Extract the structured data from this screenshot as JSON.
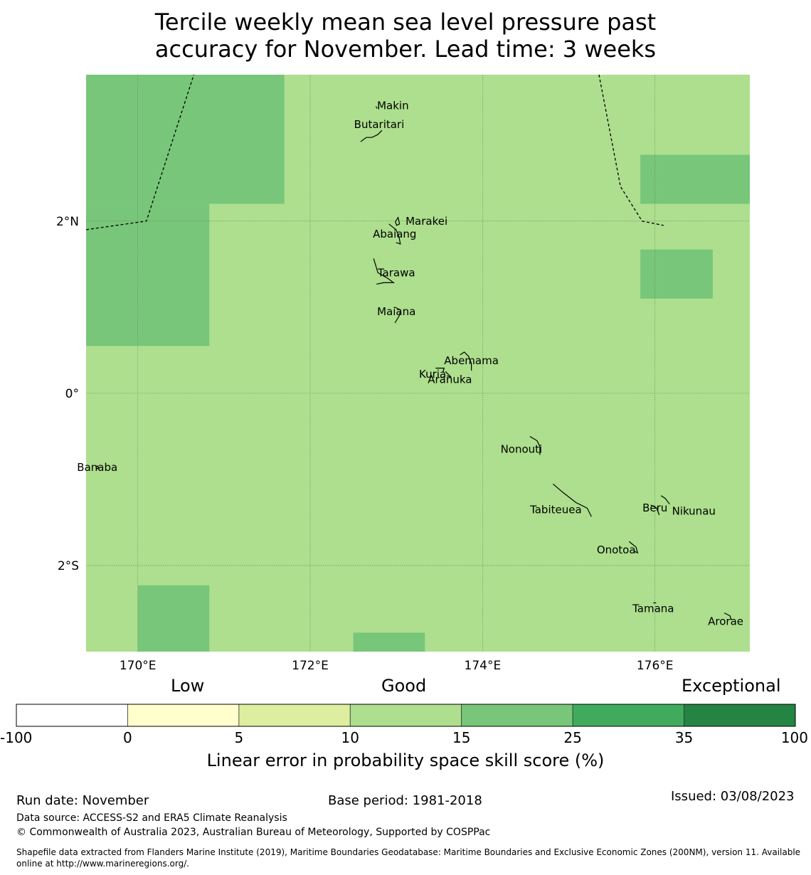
{
  "title": {
    "line1": "Tercile weekly mean sea level pressure past",
    "line2": "accuracy for November. Lead time: 3 weeks"
  },
  "map": {
    "lon_range": [
      169.4,
      177.1
    ],
    "lat_range": [
      -3.0,
      3.7
    ],
    "lat_labels": [
      {
        "value": 2,
        "label": "2°N"
      },
      {
        "value": 0,
        "label": "0°"
      },
      {
        "value": -2,
        "label": "2°S"
      }
    ],
    "lon_labels": [
      {
        "value": 170,
        "label": "170°E"
      },
      {
        "value": 172,
        "label": "172°E"
      },
      {
        "value": 174,
        "label": "174°E"
      },
      {
        "value": 176,
        "label": "176°E"
      }
    ],
    "background_category": "10-15",
    "skill_cells": [
      {
        "lon": [
          169.4,
          171.7
        ],
        "lat": [
          2.2,
          3.7
        ],
        "category": "15-25"
      },
      {
        "lon": [
          169.4,
          170.83
        ],
        "lat": [
          0.55,
          2.2
        ],
        "category": "15-25"
      },
      {
        "lon": [
          175.83,
          177.1
        ],
        "lat": [
          2.2,
          2.77
        ],
        "category": "15-25"
      },
      {
        "lon": [
          175.83,
          176.67
        ],
        "lat": [
          1.1,
          1.67
        ],
        "category": "15-25"
      },
      {
        "lon": [
          170.0,
          170.83
        ],
        "lat": [
          -3.0,
          -2.23
        ],
        "category": "15-25"
      },
      {
        "lon": [
          172.5,
          173.33
        ],
        "lat": [
          -3.0,
          -2.78
        ],
        "category": "15-25"
      }
    ],
    "eez_boundaries": [
      [
        [
          169.4,
          1.9
        ],
        [
          170.1,
          2.0
        ],
        [
          170.65,
          3.7
        ]
      ],
      [
        [
          175.35,
          3.7
        ],
        [
          175.6,
          2.4
        ],
        [
          175.85,
          2.0
        ],
        [
          176.1,
          1.95
        ]
      ]
    ],
    "islands": [
      {
        "name": "Makin",
        "lon": 172.96,
        "lat": 3.34
      },
      {
        "name": "Butaritari",
        "lon": 172.8,
        "lat": 3.12
      },
      {
        "name": "Marakei",
        "lon": 173.35,
        "lat": 2.0
      },
      {
        "name": "Abaiang",
        "lon": 172.98,
        "lat": 1.85
      },
      {
        "name": "Tarawa",
        "lon": 173.0,
        "lat": 1.4
      },
      {
        "name": "Maiana",
        "lon": 173.0,
        "lat": 0.95
      },
      {
        "name": "Abemama",
        "lon": 173.87,
        "lat": 0.38
      },
      {
        "name": "Kuria",
        "lon": 173.42,
        "lat": 0.22
      },
      {
        "name": "Aranuka",
        "lon": 173.62,
        "lat": 0.16
      },
      {
        "name": "Nonouti",
        "lon": 174.45,
        "lat": -0.65
      },
      {
        "name": "Banaba",
        "lon": 169.53,
        "lat": -0.86
      },
      {
        "name": "Tabiteuea",
        "lon": 174.85,
        "lat": -1.35
      },
      {
        "name": "Beru",
        "lon": 176.0,
        "lat": -1.33
      },
      {
        "name": "Nikunau",
        "lon": 176.45,
        "lat": -1.37
      },
      {
        "name": "Onotoa",
        "lon": 175.55,
        "lat": -1.82
      },
      {
        "name": "Tamana",
        "lon": 175.98,
        "lat": -2.5
      },
      {
        "name": "Arorae",
        "lon": 176.82,
        "lat": -2.65
      }
    ],
    "island_labels": [
      "Makin",
      "Butaritari",
      "Marakei",
      "Abaiang",
      "Tarawa",
      "Maiana",
      "Abemama",
      "Kuria",
      "Aranuka",
      "Nonouti",
      "Banaba",
      "Tabiteuea",
      "Beru",
      "Nikunau",
      "Onotoa",
      "Tamana",
      "Arorae"
    ]
  },
  "colorbar": {
    "categories": [
      {
        "range": "-100-0",
        "color": "#ffffff"
      },
      {
        "range": "0-5",
        "color": "#fffecc"
      },
      {
        "range": "5-10",
        "color": "#ddeea0"
      },
      {
        "range": "10-15",
        "color": "#addf8e"
      },
      {
        "range": "15-25",
        "color": "#78c67a"
      },
      {
        "range": "25-35",
        "color": "#40ab5c"
      },
      {
        "range": "35-100",
        "color": "#238443"
      }
    ],
    "ticks": [
      "-100",
      "0",
      "5",
      "10",
      "15",
      "25",
      "35",
      "100"
    ],
    "low_label": "Low",
    "good_label": "Good",
    "exceptional_label": "Exceptional",
    "title": "Linear error in probability space skill score (%)"
  },
  "footer": {
    "run_date": "Run date: November",
    "base_period": "Base period: 1981-2018",
    "issued": "Issued: 03/08/2023",
    "data_source": "Data source: ACCESS-S2 and ERA5 Climate Reanalysis",
    "copyright": "© Commonwealth of Australia 2023, Australian Bureau of Meteorology, Supported by COSPPac",
    "shapefile_line1": "Shapefile data extracted from Flanders Marine Institute (2019), Maritime Boundaries Geodatabase: Maritime Boundaries and Exclusive Economic Zones (200NM), version 11. Available",
    "shapefile_line2": "online at http://www.marineregions.org/."
  }
}
